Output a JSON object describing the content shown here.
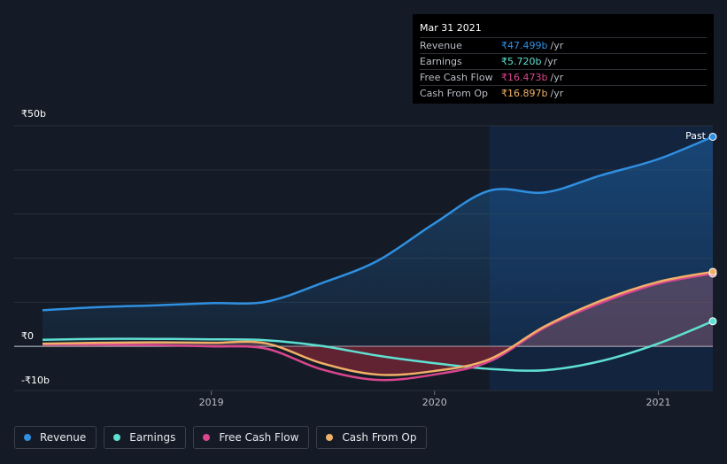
{
  "tooltip": {
    "date": "Mar 31 2021",
    "rows": [
      {
        "label": "Revenue",
        "value": "₹47.499b",
        "unit": "/yr",
        "color": "#2f8fe0"
      },
      {
        "label": "Earnings",
        "value": "₹5.720b",
        "unit": "/yr",
        "color": "#5fe0d2"
      },
      {
        "label": "Free Cash Flow",
        "value": "₹16.473b",
        "unit": "/yr",
        "color": "#d9468e"
      },
      {
        "label": "Cash From Op",
        "value": "₹16.897b",
        "unit": "/yr",
        "color": "#f0b068"
      }
    ]
  },
  "legend": [
    {
      "label": "Revenue",
      "color": "#2f8fe0"
    },
    {
      "label": "Earnings",
      "color": "#5fe0d2"
    },
    {
      "label": "Free Cash Flow",
      "color": "#d9468e"
    },
    {
      "label": "Cash From Op",
      "color": "#f0b068"
    }
  ],
  "chart_data": {
    "type": "line",
    "past_label": "Past",
    "y_tick_labels": [
      {
        "value": 50,
        "label": "₹50b"
      },
      {
        "value": 0,
        "label": "₹0"
      },
      {
        "value": -10,
        "label": "-₹10b"
      }
    ],
    "ylim": [
      -10,
      50
    ],
    "xlim": [
      "2018-03-31",
      "2021-03-31"
    ],
    "x_ticks": [
      {
        "date": "2019-01-01",
        "label": "2019"
      },
      {
        "date": "2020-01-01",
        "label": "2020"
      },
      {
        "date": "2021-01-01",
        "label": "2021"
      }
    ],
    "grid": true,
    "highlight_start": "2020-03-31",
    "series": [
      {
        "name": "Revenue",
        "color": "#2f8fe0",
        "points": [
          [
            "2018-03-31",
            8.2
          ],
          [
            "2018-06-30",
            8.9
          ],
          [
            "2018-09-30",
            9.3
          ],
          [
            "2018-12-31",
            9.8
          ],
          [
            "2019-03-31",
            10.1
          ],
          [
            "2019-06-30",
            14.3
          ],
          [
            "2019-09-30",
            19.4
          ],
          [
            "2019-12-31",
            27.8
          ],
          [
            "2020-03-31",
            35.3
          ],
          [
            "2020-06-30",
            34.9
          ],
          [
            "2020-09-30",
            38.8
          ],
          [
            "2020-12-31",
            42.4
          ],
          [
            "2021-03-31",
            47.5
          ]
        ]
      },
      {
        "name": "Earnings",
        "color": "#5fe0d2",
        "points": [
          [
            "2018-03-31",
            1.5
          ],
          [
            "2018-06-30",
            1.7
          ],
          [
            "2018-09-30",
            1.7
          ],
          [
            "2018-12-31",
            1.6
          ],
          [
            "2019-03-31",
            1.4
          ],
          [
            "2019-06-30",
            0.1
          ],
          [
            "2019-09-30",
            -2.1
          ],
          [
            "2019-12-31",
            -3.8
          ],
          [
            "2020-03-31",
            -5.1
          ],
          [
            "2020-06-30",
            -5.4
          ],
          [
            "2020-09-30",
            -3.3
          ],
          [
            "2020-12-31",
            0.6
          ],
          [
            "2021-03-31",
            5.7
          ]
        ]
      },
      {
        "name": "Free Cash Flow",
        "color": "#d9468e",
        "points": [
          [
            "2018-03-31",
            0.4
          ],
          [
            "2018-06-30",
            0.4
          ],
          [
            "2018-09-30",
            0.3
          ],
          [
            "2018-12-31",
            0.0
          ],
          [
            "2019-03-31",
            -0.5
          ],
          [
            "2019-06-30",
            -5.2
          ],
          [
            "2019-09-30",
            -7.6
          ],
          [
            "2019-12-31",
            -6.4
          ],
          [
            "2020-03-31",
            -3.4
          ],
          [
            "2020-06-30",
            4.3
          ],
          [
            "2020-09-30",
            9.9
          ],
          [
            "2020-12-31",
            14.2
          ],
          [
            "2021-03-31",
            16.5
          ]
        ]
      },
      {
        "name": "Cash From Op",
        "color": "#f0b068",
        "points": [
          [
            "2018-03-31",
            0.6
          ],
          [
            "2018-06-30",
            0.8
          ],
          [
            "2018-09-30",
            0.9
          ],
          [
            "2018-12-31",
            0.8
          ],
          [
            "2019-03-31",
            0.7
          ],
          [
            "2019-06-30",
            -3.8
          ],
          [
            "2019-09-30",
            -6.4
          ],
          [
            "2019-12-31",
            -5.6
          ],
          [
            "2020-03-31",
            -2.9
          ],
          [
            "2020-06-30",
            4.6
          ],
          [
            "2020-09-30",
            10.4
          ],
          [
            "2020-12-31",
            14.6
          ],
          [
            "2021-03-31",
            16.9
          ]
        ]
      }
    ]
  }
}
